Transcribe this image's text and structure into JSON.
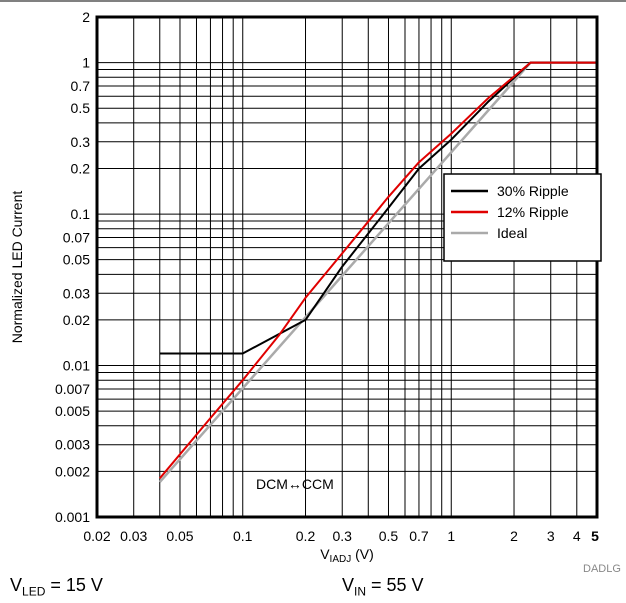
{
  "chart_data": {
    "type": "line",
    "xscale": "log",
    "yscale": "log",
    "xlim": [
      0.02,
      5
    ],
    "ylim": [
      0.001,
      2
    ],
    "xticks": [
      {
        "v": 0.02,
        "label": "0.02"
      },
      {
        "v": 0.03,
        "label": "0.03"
      },
      {
        "v": 0.05,
        "label": "0.05"
      },
      {
        "v": 0.1,
        "label": "0.1"
      },
      {
        "v": 0.2,
        "label": "0.2"
      },
      {
        "v": 0.3,
        "label": "0.3"
      },
      {
        "v": 0.5,
        "label": "0.5"
      },
      {
        "v": 0.7,
        "label": "0.7"
      },
      {
        "v": 1,
        "label": "1"
      },
      {
        "v": 2,
        "label": "2"
      },
      {
        "v": 3,
        "label": "3"
      },
      {
        "v": 4,
        "label": "4"
      },
      {
        "v": 5,
        "label": "5"
      }
    ],
    "yticks": [
      {
        "v": 0.001,
        "label": "0.001"
      },
      {
        "v": 0.002,
        "label": "0.002"
      },
      {
        "v": 0.003,
        "label": "0.003"
      },
      {
        "v": 0.005,
        "label": "0.005"
      },
      {
        "v": 0.007,
        "label": "0.007"
      },
      {
        "v": 0.01,
        "label": "0.01"
      },
      {
        "v": 0.02,
        "label": "0.02"
      },
      {
        "v": 0.03,
        "label": "0.03"
      },
      {
        "v": 0.05,
        "label": "0.05"
      },
      {
        "v": 0.07,
        "label": "0.07"
      },
      {
        "v": 0.1,
        "label": "0.1"
      },
      {
        "v": 0.2,
        "label": "0.2"
      },
      {
        "v": 0.3,
        "label": "0.3"
      },
      {
        "v": 0.5,
        "label": "0.5"
      },
      {
        "v": 0.7,
        "label": "0.7"
      },
      {
        "v": 1,
        "label": "1"
      },
      {
        "v": 2,
        "label": "2"
      }
    ],
    "gridlines": [
      0.02,
      0.03,
      0.04,
      0.05,
      0.06,
      0.07,
      0.08,
      0.09,
      0.1,
      0.2,
      0.3,
      0.4,
      0.5,
      0.6,
      0.7,
      0.8,
      0.9,
      1,
      2,
      3,
      4,
      5
    ],
    "ygridlines": [
      0.001,
      0.002,
      0.003,
      0.004,
      0.005,
      0.006,
      0.007,
      0.008,
      0.009,
      0.01,
      0.02,
      0.03,
      0.04,
      0.05,
      0.06,
      0.07,
      0.08,
      0.09,
      0.1,
      0.2,
      0.3,
      0.4,
      0.5,
      0.6,
      0.7,
      0.8,
      0.9,
      1,
      2
    ],
    "grid": true,
    "ylabel": "Normalized LED Current",
    "xlabel_main": "V",
    "xlabel_sub": "IADJ",
    "xlabel_unit": " (V)",
    "legend_position": "right",
    "annotation": "DCM↔CCM",
    "source_code": "DADLG",
    "series": [
      {
        "name": "30% Ripple",
        "color": "#000000",
        "x": [
          0.04,
          0.1,
          0.2,
          0.3,
          0.5,
          0.7,
          1,
          1.5,
          2.4,
          5
        ],
        "y": [
          0.012,
          0.012,
          0.02,
          0.045,
          0.11,
          0.2,
          0.31,
          0.55,
          1,
          1
        ]
      },
      {
        "name": "12% Ripple",
        "color": "#e00000",
        "x": [
          0.04,
          0.07,
          0.1,
          0.15,
          0.2,
          0.3,
          0.5,
          0.7,
          1,
          1.5,
          2.4,
          5
        ],
        "y": [
          0.0018,
          0.0045,
          0.008,
          0.016,
          0.028,
          0.055,
          0.13,
          0.22,
          0.34,
          0.58,
          1,
          1
        ]
      },
      {
        "name": "Ideal",
        "color": "#aaaaaa",
        "x": [
          0.04,
          2.4,
          5
        ],
        "y": [
          0.0017,
          1,
          1
        ]
      }
    ]
  },
  "conditions": {
    "left": {
      "main": "V",
      "sub": "LED",
      "rest": " = 15 V"
    },
    "right": {
      "main": "V",
      "sub": "IN",
      "rest": " = 55 V"
    }
  }
}
